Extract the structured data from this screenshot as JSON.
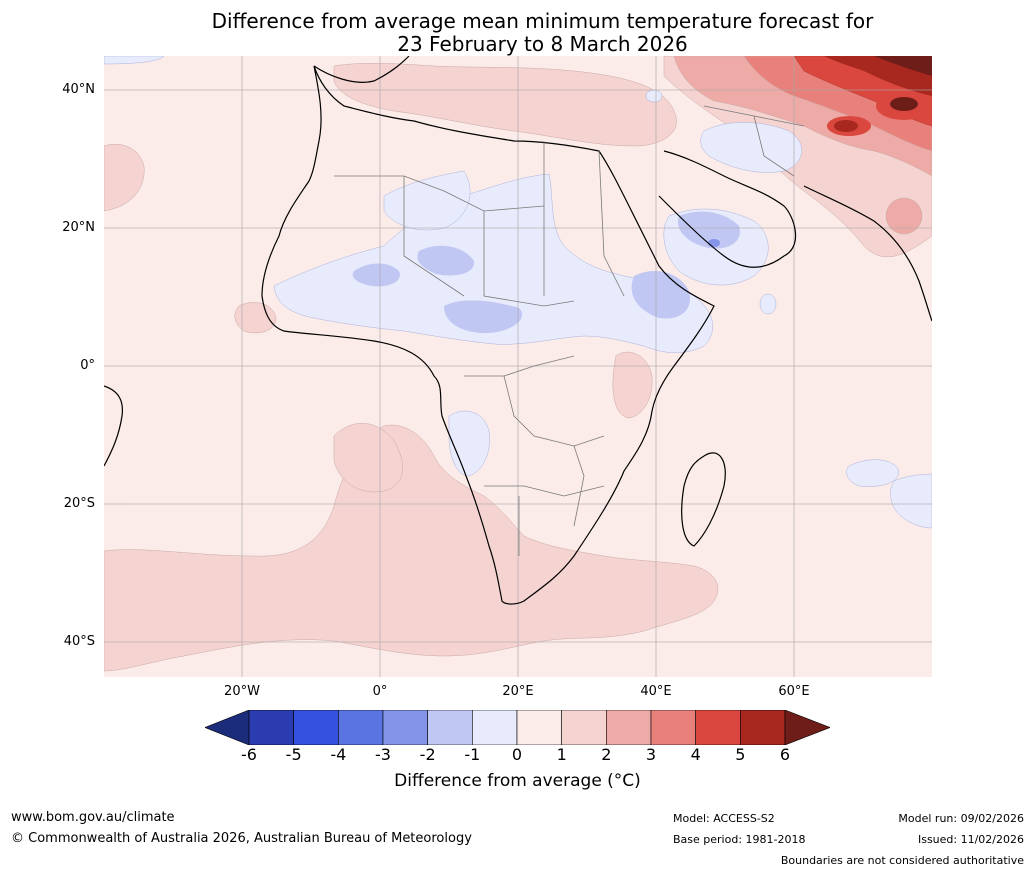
{
  "title_line1": "Difference from average mean minimum temperature forecast for",
  "title_line2": "23 February to 8 March 2026",
  "lat_labels": [
    "40°N",
    "20°N",
    "0°",
    "20°S",
    "40°S"
  ],
  "lon_labels": [
    "20°W",
    "0°",
    "20°E",
    "40°E",
    "60°E"
  ],
  "colorbar": {
    "ticks": [
      "-6",
      "-5",
      "-4",
      "-3",
      "-2",
      "-1",
      "0",
      "1",
      "2",
      "3",
      "4",
      "5",
      "6"
    ],
    "colors": [
      "#1b2c7a",
      "#2a3cb0",
      "#3451e0",
      "#5a74e2",
      "#8494e8",
      "#c0c7f3",
      "#e8ebfb",
      "#fbebe9",
      "#f4d3d1",
      "#eeaaa6",
      "#e8817b",
      "#d9473e",
      "#a8281f",
      "#6e1d18"
    ],
    "label": "Difference from average (°C)"
  },
  "footer": {
    "website": "www.bom.gov.au/climate",
    "copyright": "© Commonwealth of Australia 2026, Australian Bureau of Meteorology",
    "model": "Model: ACCESS-S2",
    "base_period": "Base period: 1981-2018",
    "model_run": "Model run: 09/02/2026",
    "issued": "Issued: 11/02/2026",
    "disclaimer": "Boundaries are not considered authoritative"
  }
}
